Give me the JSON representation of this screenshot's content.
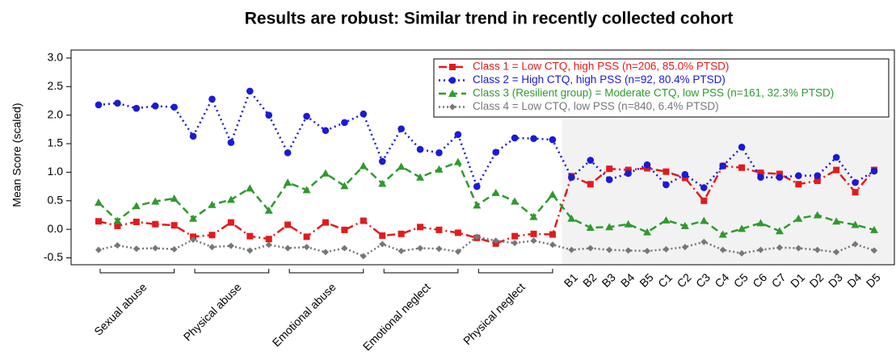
{
  "chart_data": {
    "type": "line",
    "title": "Results are robust: Similar trend in recently collected cohort",
    "y_label": "Mean Score (scaled)",
    "groups": [
      "Sexual abuse",
      "Physical abuse",
      "Emotional abuse",
      "Emotional neglect",
      "Physical neglect"
    ],
    "categories": [
      null,
      null,
      null,
      null,
      null,
      null,
      null,
      null,
      null,
      null,
      null,
      null,
      null,
      null,
      null,
      null,
      null,
      null,
      null,
      null,
      null,
      null,
      null,
      null,
      null,
      "B1",
      "B2",
      "B3",
      "B4",
      "B5",
      "C1",
      "C2",
      "C3",
      "C4",
      "C5",
      "C6",
      "C7",
      "D1",
      "D2",
      "D3",
      "D4",
      "D5"
    ],
    "series": [
      {
        "name": "Class 1 = Low CTQ, high PSS (n=206, 85.0% PTSD)",
        "color": "#e31a1c",
        "values": [
          0.14,
          0.06,
          0.13,
          0.09,
          0.07,
          -0.13,
          -0.1,
          0.12,
          -0.12,
          -0.17,
          0.08,
          -0.13,
          0.12,
          -0.01,
          0.15,
          -0.11,
          -0.08,
          0.04,
          -0.01,
          -0.06,
          -0.15,
          -0.25,
          -0.12,
          -0.08,
          -0.09,
          0.93,
          0.79,
          1.06,
          1.04,
          1.07,
          1.01,
          0.9,
          0.5,
          1.11,
          1.08,
          0.99,
          0.97,
          0.79,
          0.85,
          1.04,
          0.65,
          1.04
        ]
      },
      {
        "name": "Class 2 = High CTQ, high PSS (n=92, 80.4% PTSD)",
        "color": "#1a1ad8",
        "values": [
          2.18,
          2.21,
          2.12,
          2.16,
          2.14,
          1.63,
          2.28,
          1.52,
          2.42,
          2.0,
          1.34,
          1.98,
          1.73,
          1.87,
          2.02,
          1.19,
          1.76,
          1.4,
          1.34,
          1.66,
          0.75,
          1.35,
          1.6,
          1.59,
          1.57,
          0.91,
          1.21,
          0.87,
          0.98,
          1.13,
          0.78,
          0.96,
          0.73,
          1.11,
          1.44,
          0.91,
          0.91,
          0.94,
          0.94,
          1.26,
          0.82,
          1.02
        ]
      },
      {
        "name": "Class 3 (Resilient group) = Moderate CTQ, low PSS (n=161, 32.3% PTSD)",
        "color": "#2e9a2e",
        "values": [
          0.47,
          0.15,
          0.41,
          0.49,
          0.54,
          0.19,
          0.43,
          0.52,
          0.72,
          0.33,
          0.82,
          0.69,
          0.98,
          0.76,
          1.11,
          0.8,
          1.1,
          0.91,
          1.05,
          1.18,
          0.42,
          0.64,
          0.49,
          0.22,
          0.61,
          0.19,
          0.03,
          0.04,
          0.09,
          -0.05,
          0.16,
          0.06,
          0.15,
          -0.09,
          0.01,
          0.11,
          -0.03,
          0.19,
          0.25,
          0.14,
          0.08,
          -0.01
        ]
      },
      {
        "name": "Class 4 = Low CTQ, low PSS (n=840, 6.4% PTSD)",
        "color": "#777777",
        "values": [
          -0.36,
          -0.28,
          -0.34,
          -0.33,
          -0.35,
          -0.18,
          -0.31,
          -0.29,
          -0.37,
          -0.27,
          -0.33,
          -0.31,
          -0.4,
          -0.33,
          -0.47,
          -0.26,
          -0.38,
          -0.33,
          -0.34,
          -0.39,
          -0.13,
          -0.2,
          -0.24,
          -0.2,
          -0.27,
          -0.36,
          -0.33,
          -0.36,
          -0.37,
          -0.38,
          -0.35,
          -0.31,
          -0.22,
          -0.36,
          -0.42,
          -0.36,
          -0.32,
          -0.33,
          -0.36,
          -0.4,
          -0.26,
          -0.37
        ]
      }
    ],
    "ylim": [
      -0.62,
      3.14
    ],
    "yticks": [
      {
        "value": 3,
        "label": "3.0"
      },
      2.5,
      {
        "value": 2,
        "label": "2.0"
      },
      1.5,
      {
        "value": 1,
        "label": "1.0"
      },
      0.5,
      {
        "value": 0,
        "label": "0.0"
      },
      -0.5
    ]
  }
}
